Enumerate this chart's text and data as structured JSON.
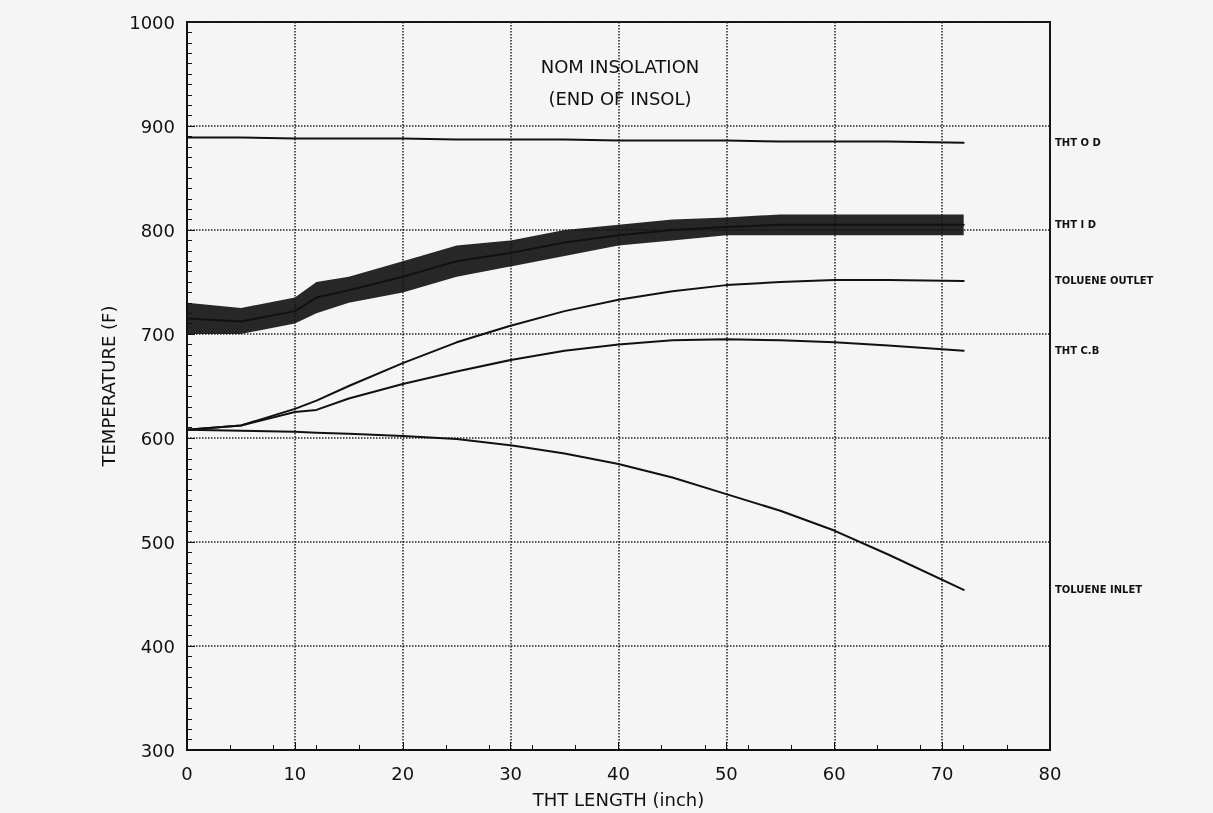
{
  "chart_data": {
    "type": "line",
    "title": "NOM INSOLATION",
    "subtitle": "(END OF INSOL)",
    "xlabel": "THT LENGTH (inch)",
    "ylabel": "TEMPERATURE (F)",
    "x": [
      0,
      5,
      10,
      12,
      15,
      20,
      25,
      30,
      35,
      40,
      45,
      50,
      55,
      60,
      65,
      72
    ],
    "series": [
      {
        "name": "THT O D",
        "color": "#111111",
        "values": [
          889,
          889,
          888,
          888,
          888,
          888,
          887,
          887,
          887,
          886,
          886,
          886,
          885,
          885,
          885,
          884
        ]
      },
      {
        "name": "THT I D",
        "color": "#111111",
        "values": [
          715,
          712,
          722,
          735,
          742,
          755,
          770,
          778,
          788,
          795,
          800,
          803,
          805,
          805,
          805,
          805
        ],
        "lower": [
          700,
          700,
          710,
          720,
          730,
          740,
          755,
          765,
          775,
          785,
          790,
          795,
          795,
          795,
          795,
          795
        ],
        "upper": [
          730,
          725,
          735,
          750,
          755,
          770,
          785,
          790,
          800,
          805,
          810,
          812,
          815,
          815,
          815,
          815
        ]
      },
      {
        "name": "TOLUENE OUTLET",
        "color": "#111111",
        "values": [
          608,
          612,
          628,
          636,
          650,
          672,
          692,
          708,
          722,
          733,
          741,
          747,
          750,
          752,
          752,
          751
        ]
      },
      {
        "name": "THT C.B",
        "color": "#111111",
        "values": [
          608,
          612,
          625,
          627,
          638,
          652,
          664,
          675,
          684,
          690,
          694,
          695,
          694,
          692,
          689,
          684
        ]
      },
      {
        "name": "TOLUENE INLET",
        "color": "#111111",
        "values": [
          608,
          607,
          606,
          605,
          604,
          602,
          599,
          593,
          585,
          575,
          562,
          546,
          530,
          511,
          488,
          454
        ]
      }
    ],
    "xlim": [
      0,
      80
    ],
    "xticks": [
      0,
      10,
      20,
      30,
      40,
      50,
      60,
      70,
      80
    ],
    "ylim": [
      300,
      1000
    ],
    "yticks": [
      300,
      400,
      500,
      600,
      700,
      800,
      900,
      1000
    ],
    "grid": true,
    "marker": "none",
    "line_style": "solid",
    "legend": false
  }
}
